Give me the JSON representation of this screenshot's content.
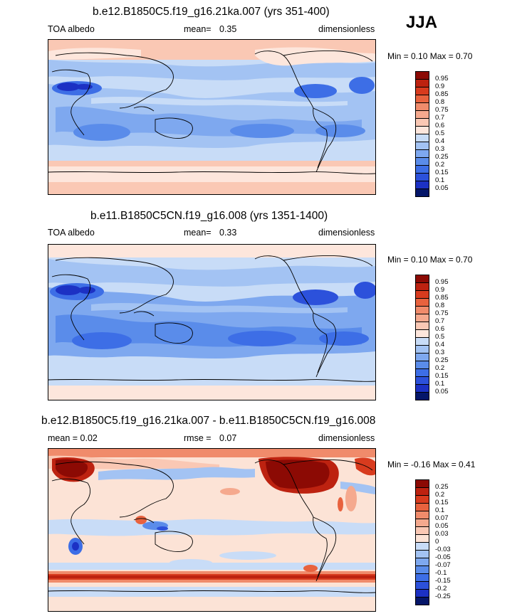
{
  "season": "JJA",
  "panels": [
    {
      "title": "b.e12.B1850C5.f19_g16.21ka.007 (yrs 351-400)",
      "left_label": "TOA albedo",
      "mean_label": "mean=",
      "mean_value": "0.35",
      "units": "dimensionless",
      "min_max": "Min =   0.10 Max =   0.70",
      "ticks": [
        "0.95",
        "0.9",
        "0.85",
        "0.8",
        "0.75",
        "0.7",
        "0.6",
        "0.5",
        "0.4",
        "0.3",
        "0.25",
        "0.2",
        "0.15",
        "0.1",
        "0.05"
      ]
    },
    {
      "title": "b.e11.B1850C5CN.f19_g16.008 (yrs 1351-1400)",
      "left_label": "TOA albedo",
      "mean_label": "mean=",
      "mean_value": "0.33",
      "units": "dimensionless",
      "min_max": "Min =   0.10 Max =   0.70",
      "ticks": [
        "0.95",
        "0.9",
        "0.85",
        "0.8",
        "0.75",
        "0.7",
        "0.6",
        "0.5",
        "0.4",
        "0.3",
        "0.25",
        "0.2",
        "0.15",
        "0.1",
        "0.05"
      ]
    },
    {
      "title": "b.e12.B1850C5.f19_g16.21ka.007 - b.e11.B1850C5CN.f19_g16.008",
      "left_label": "mean =   0.02",
      "mean_label": "rmse =",
      "mean_value": "0.07",
      "units": "dimensionless",
      "min_max": "Min =  -0.16 Max =   0.41",
      "ticks": [
        "0.25",
        "0.2",
        "0.15",
        "0.1",
        "0.07",
        "0.05",
        "0.03",
        "0",
        "-0.03",
        "-0.05",
        "-0.07",
        "-0.1",
        "-0.15",
        "-0.2",
        "-0.25"
      ]
    }
  ],
  "colors": {
    "abs_scale": [
      "#051669",
      "#1c31c4",
      "#2c51db",
      "#3d6ee6",
      "#5a8cea",
      "#7ea8ef",
      "#a3c3f3",
      "#c8dcf7",
      "#fde6dc",
      "#fac8b4",
      "#f5a98e",
      "#f08b6b",
      "#e8623e",
      "#d83b1e",
      "#bd2210",
      "#8c0a04"
    ],
    "diff_scale": [
      "#051669",
      "#1c31c4",
      "#2c51db",
      "#3d6ee6",
      "#5a8cea",
      "#7ea8ef",
      "#a3c3f3",
      "#c8dcf7",
      "#fce3d6",
      "#fac8b4",
      "#f5a98e",
      "#f08b6b",
      "#e8623e",
      "#d83b1e",
      "#bd2210",
      "#8c0a04"
    ],
    "ocean_base": "#c6d9f6",
    "diff_base": "#fbe4d8"
  },
  "chart_data": [
    {
      "type": "heatmap",
      "title": "b.e12.B1850C5.f19_g16.21ka.007 (yrs 351-400)",
      "variable": "TOA albedo",
      "season": "JJA",
      "mean": 0.35,
      "min": 0.1,
      "max": 0.7,
      "units": "dimensionless",
      "contour_levels": [
        0.05,
        0.1,
        0.15,
        0.2,
        0.25,
        0.3,
        0.4,
        0.5,
        0.6,
        0.7,
        0.75,
        0.8,
        0.85,
        0.9,
        0.95
      ]
    },
    {
      "type": "heatmap",
      "title": "b.e11.B1850C5CN.f19_g16.008 (yrs 1351-1400)",
      "variable": "TOA albedo",
      "season": "JJA",
      "mean": 0.33,
      "min": 0.1,
      "max": 0.7,
      "units": "dimensionless",
      "contour_levels": [
        0.05,
        0.1,
        0.15,
        0.2,
        0.25,
        0.3,
        0.4,
        0.5,
        0.6,
        0.7,
        0.75,
        0.8,
        0.85,
        0.9,
        0.95
      ]
    },
    {
      "type": "heatmap",
      "title": "b.e12.B1850C5.f19_g16.21ka.007 - b.e11.B1850C5CN.f19_g16.008",
      "season": "JJA",
      "mean": 0.02,
      "rmse": 0.07,
      "min": -0.16,
      "max": 0.41,
      "units": "dimensionless",
      "contour_levels": [
        -0.25,
        -0.2,
        -0.15,
        -0.1,
        -0.07,
        -0.05,
        -0.03,
        0,
        0.03,
        0.05,
        0.07,
        0.1,
        0.15,
        0.2,
        0.25
      ]
    }
  ]
}
